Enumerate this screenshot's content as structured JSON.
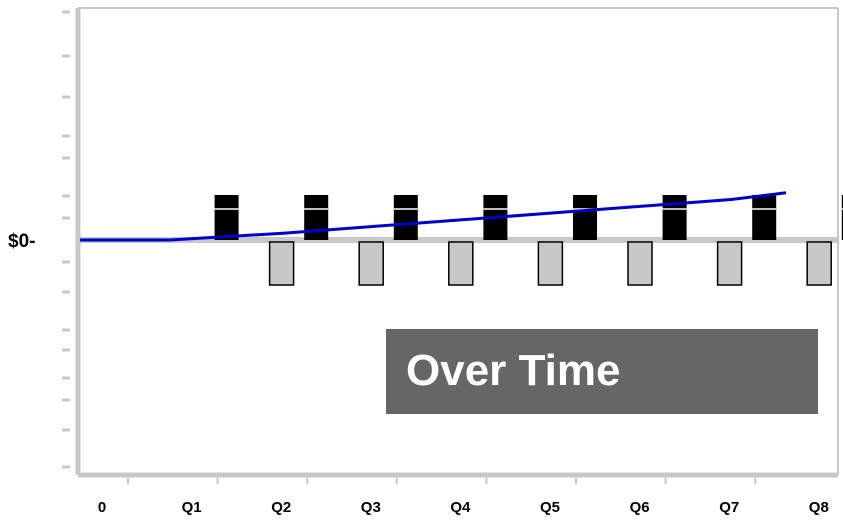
{
  "chart_data": {
    "type": "bar",
    "categories": [
      "0",
      "Q1",
      "Q2",
      "Q3",
      "Q4",
      "Q5",
      "Q6",
      "Q7",
      "Q8"
    ],
    "y_tick_label": "$0-",
    "series": [
      {
        "kind": "bar",
        "color": "#000000",
        "values": [
          0,
          1,
          1,
          1,
          1,
          1,
          1,
          1,
          1
        ]
      },
      {
        "kind": "bar",
        "color": "#c8c8c8",
        "values": [
          0,
          -1,
          -1,
          -1,
          -1,
          -1,
          -1,
          -1,
          -1
        ]
      },
      {
        "kind": "line",
        "color": "#0000cc",
        "values": [
          0,
          0,
          0.15,
          0.3,
          0.45,
          0.6,
          0.75,
          0.9,
          1.05
        ]
      }
    ],
    "grid": false,
    "legend": "none"
  },
  "overlay": {
    "label": "Over Time"
  }
}
